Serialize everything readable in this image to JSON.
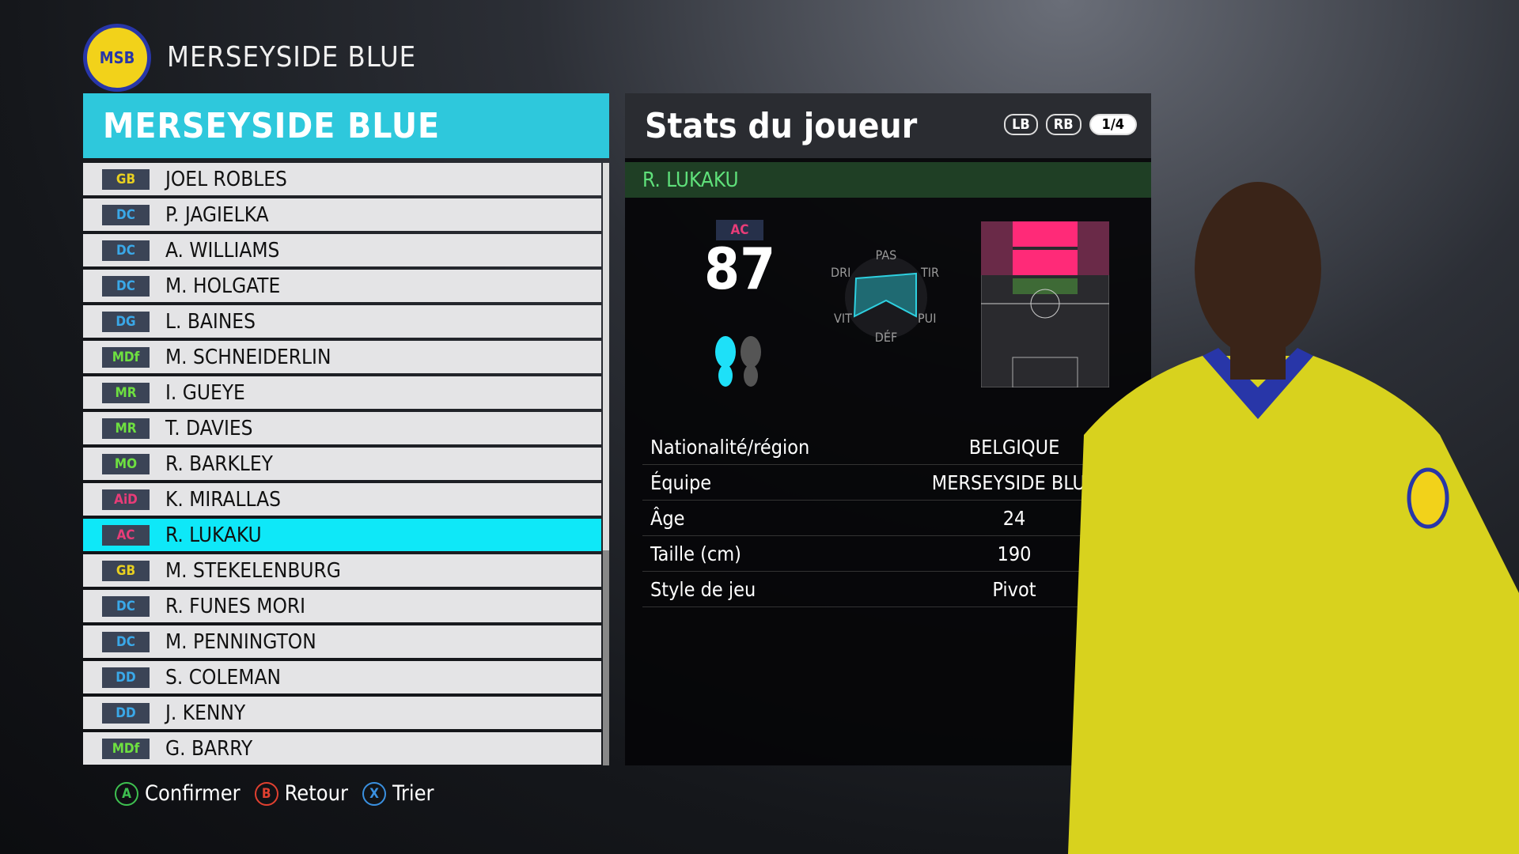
{
  "header": {
    "team": "MERSEYSIDE BLUE",
    "logo_text": "MSB"
  },
  "list": {
    "title": "MERSEYSIDE BLUE",
    "players": [
      {
        "pos": "GB",
        "name": "JOEL ROBLES",
        "color": "#e8d020"
      },
      {
        "pos": "DC",
        "name": "P. JAGIELKA",
        "color": "#3aa8e8"
      },
      {
        "pos": "DC",
        "name": "A. WILLIAMS",
        "color": "#3aa8e8"
      },
      {
        "pos": "DC",
        "name": "M. HOLGATE",
        "color": "#3aa8e8"
      },
      {
        "pos": "DG",
        "name": "L. BAINES",
        "color": "#3aa8e8"
      },
      {
        "pos": "MDf",
        "name": "M. SCHNEIDERLIN",
        "color": "#6ee040"
      },
      {
        "pos": "MR",
        "name": "I. GUEYE",
        "color": "#6ee040"
      },
      {
        "pos": "MR",
        "name": "T. DAVIES",
        "color": "#6ee040"
      },
      {
        "pos": "MO",
        "name": "R. BARKLEY",
        "color": "#6ee040"
      },
      {
        "pos": "AiD",
        "name": "K. MIRALLAS",
        "color": "#e83c78"
      },
      {
        "pos": "AC",
        "name": "R. LUKAKU",
        "color": "#e83c78",
        "selected": true
      },
      {
        "pos": "GB",
        "name": "M. STEKELENBURG",
        "color": "#e8d020"
      },
      {
        "pos": "DC",
        "name": "R. FUNES MORI",
        "color": "#3aa8e8"
      },
      {
        "pos": "DC",
        "name": "M. PENNINGTON",
        "color": "#3aa8e8"
      },
      {
        "pos": "DD",
        "name": "S. COLEMAN",
        "color": "#3aa8e8"
      },
      {
        "pos": "DD",
        "name": "J. KENNY",
        "color": "#3aa8e8"
      },
      {
        "pos": "MDf",
        "name": "G. BARRY",
        "color": "#6ee040"
      }
    ]
  },
  "stats": {
    "title": "Stats du joueur",
    "lb": "LB",
    "rb": "RB",
    "page": "1/4",
    "player_name": "R. LUKAKU",
    "position": "AC",
    "rating": "87",
    "radar_labels": {
      "pas": "PAS",
      "tir": "TIR",
      "pui": "PUI",
      "def": "DÉF",
      "vit": "VIT",
      "dri": "DRI"
    },
    "info": [
      {
        "k": "Nationalité/région",
        "v": "BELGIQUE"
      },
      {
        "k": "Équipe",
        "v": "MERSEYSIDE BLUE"
      },
      {
        "k": "Âge",
        "v": "24"
      },
      {
        "k": "Taille (cm)",
        "v": "190"
      },
      {
        "k": "Style de jeu",
        "v": "Pivot"
      }
    ],
    "strong_foot": "left",
    "accent": "#0ee8f8"
  },
  "footer": [
    {
      "btn": "A",
      "label": "Confirmer",
      "color": "#3ec050"
    },
    {
      "btn": "B",
      "label": "Retour",
      "color": "#e04030"
    },
    {
      "btn": "X",
      "label": "Trier",
      "color": "#3a90e0"
    }
  ]
}
